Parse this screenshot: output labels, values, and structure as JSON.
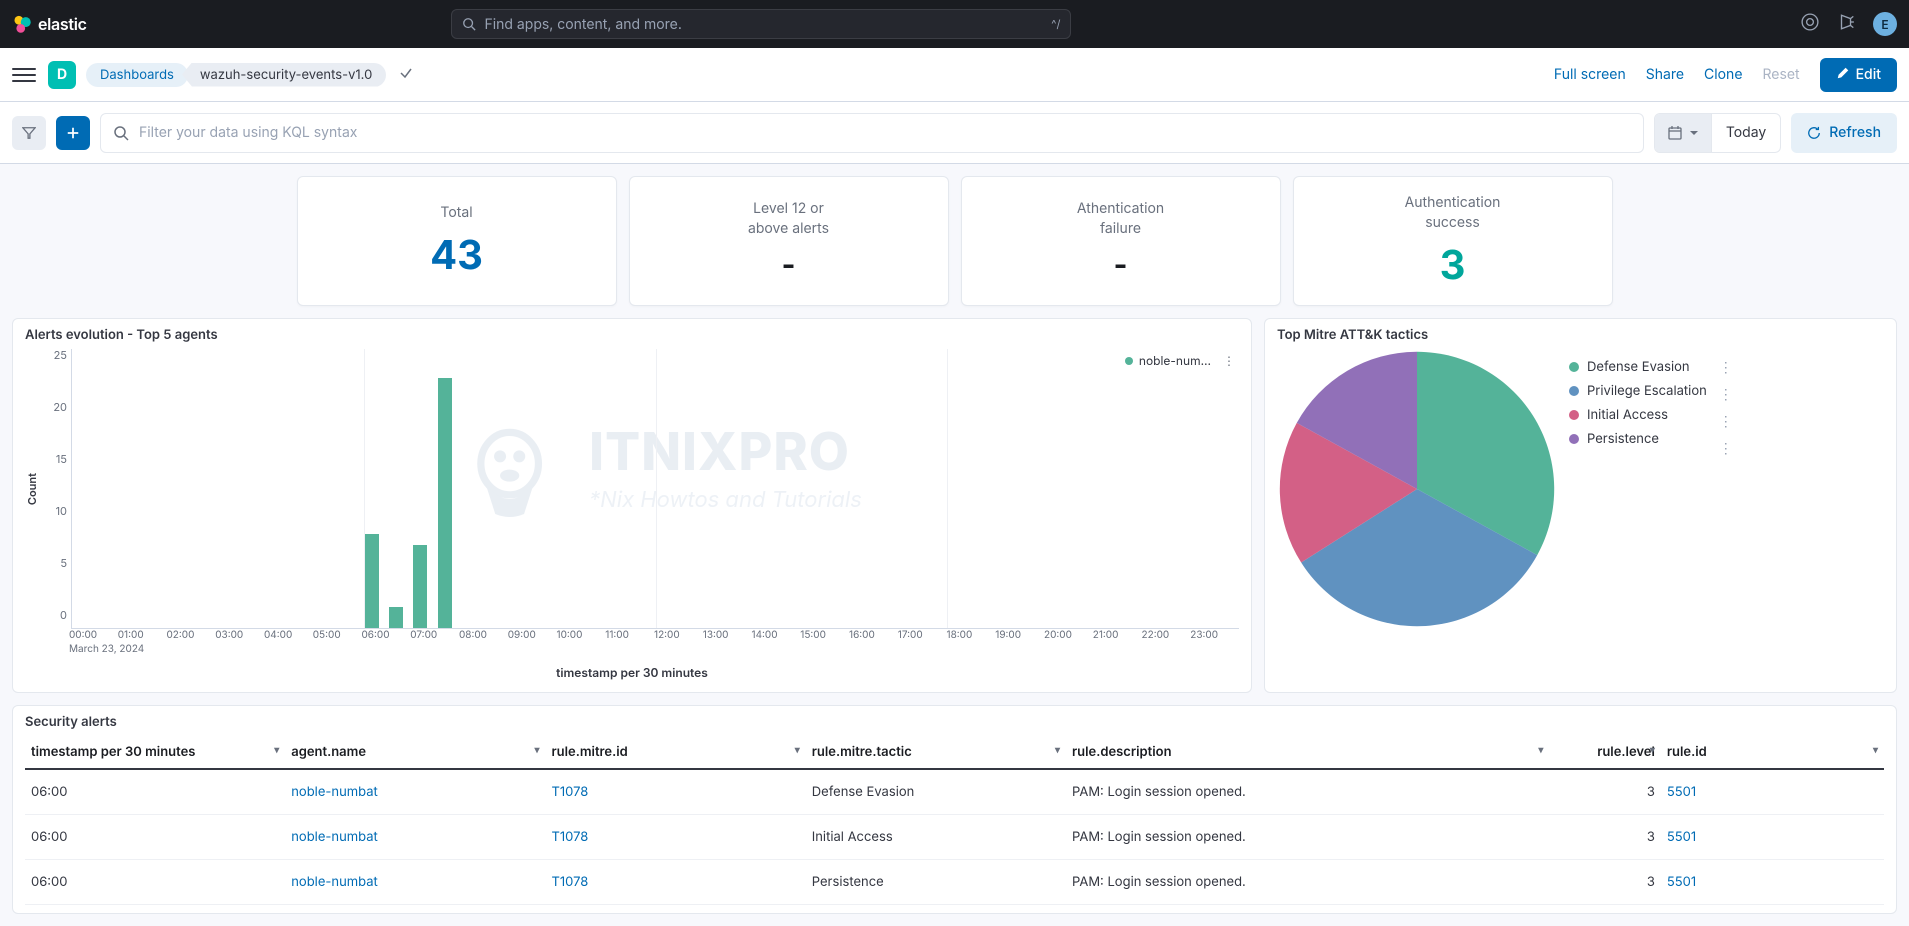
{
  "header": {
    "logo_text": "elastic",
    "search_placeholder": "Find apps, content, and more.",
    "search_kbd": "^/",
    "avatar_letter": "E"
  },
  "subheader": {
    "space_letter": "D",
    "breadcrumb_root": "Dashboards",
    "breadcrumb_current": "wazuh-security-events-v1.0",
    "actions": {
      "fullscreen": "Full screen",
      "share": "Share",
      "clone": "Clone",
      "reset": "Reset",
      "edit": "Edit"
    }
  },
  "filterbar": {
    "kql_placeholder": "Filter your data using KQL syntax",
    "date_label": "Today",
    "refresh": "Refresh"
  },
  "metrics": [
    {
      "title": "Total",
      "value": "43",
      "style": "blue"
    },
    {
      "title": "Level 12 or\nabove alerts",
      "value": "-",
      "style": "dash"
    },
    {
      "title": "Athentication\nfailure",
      "value": "-",
      "style": "dash"
    },
    {
      "title": "Authentication\nsuccess",
      "value": "3",
      "style": "green"
    }
  ],
  "bar_chart": {
    "title": "Alerts evolution - Top 5 agents",
    "y_label": "Count",
    "y_max": 25,
    "y_ticks": [
      0,
      5,
      10,
      15,
      20,
      25
    ],
    "x_label": "timestamp per 30 minutes",
    "x_ticks": [
      "00:00",
      "01:00",
      "02:00",
      "03:00",
      "04:00",
      "05:00",
      "06:00",
      "07:00",
      "08:00",
      "09:00",
      "10:00",
      "11:00",
      "12:00",
      "13:00",
      "14:00",
      "15:00",
      "16:00",
      "17:00",
      "18:00",
      "19:00",
      "20:00",
      "21:00",
      "22:00",
      "23:00"
    ],
    "x_date_label": "March 23, 2024",
    "legend_label": "noble-num…",
    "series_color": "#54b399",
    "grid_color": "#eef0f4",
    "bars": [
      {
        "x_index": 6.0,
        "value": 9
      },
      {
        "x_index": 6.5,
        "value": 2
      },
      {
        "x_index": 7.0,
        "value": 8
      },
      {
        "x_index": 7.5,
        "value": 24
      }
    ]
  },
  "pie_chart": {
    "title": "Top Mitre ATT&K tactics",
    "slices": [
      {
        "label": "Defense Evasion",
        "value": 33,
        "color": "#54b399"
      },
      {
        "label": "Privilege Escalation",
        "value": 33,
        "color": "#6092c0"
      },
      {
        "label": "Initial Access",
        "value": 17,
        "color": "#d36086"
      },
      {
        "label": "Persistence",
        "value": 17,
        "color": "#9170b8"
      }
    ]
  },
  "alerts_table": {
    "title": "Security alerts",
    "columns": [
      {
        "key": "timestamp",
        "label": "timestamp per 30 minutes"
      },
      {
        "key": "agent_name",
        "label": "agent.name"
      },
      {
        "key": "mitre_id",
        "label": "rule.mitre.id"
      },
      {
        "key": "mitre_tactic",
        "label": "rule.mitre.tactic"
      },
      {
        "key": "description",
        "label": "rule.description"
      },
      {
        "key": "level",
        "label": "rule.level"
      },
      {
        "key": "rule_id",
        "label": "rule.id"
      }
    ],
    "rows": [
      {
        "timestamp": "06:00",
        "agent_name": "noble-numbat",
        "mitre_id": "T1078",
        "mitre_tactic": "Defense Evasion",
        "description": "PAM: Login session opened.",
        "level": "3",
        "rule_id": "5501"
      },
      {
        "timestamp": "06:00",
        "agent_name": "noble-numbat",
        "mitre_id": "T1078",
        "mitre_tactic": "Initial Access",
        "description": "PAM: Login session opened.",
        "level": "3",
        "rule_id": "5501"
      },
      {
        "timestamp": "06:00",
        "agent_name": "noble-numbat",
        "mitre_id": "T1078",
        "mitre_tactic": "Persistence",
        "description": "PAM: Login session opened.",
        "level": "3",
        "rule_id": "5501"
      }
    ]
  },
  "watermark": {
    "brand": "ITNIXPRO",
    "tagline": "*Nix Howtos and Tutorials"
  }
}
